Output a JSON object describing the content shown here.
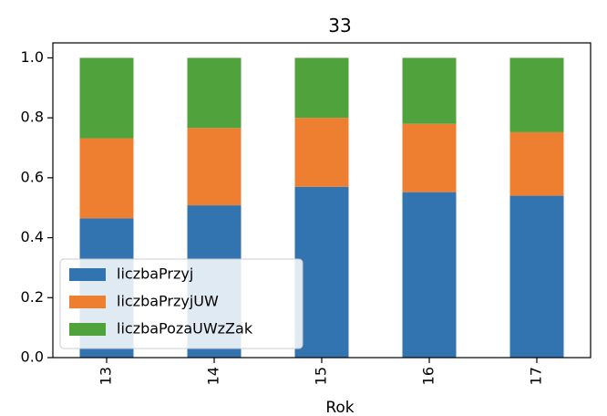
{
  "chart_data": {
    "type": "bar",
    "stacked": true,
    "title": "33",
    "xlabel": "Rok",
    "ylabel": "",
    "categories": [
      "13",
      "14",
      "15",
      "16",
      "17"
    ],
    "series": [
      {
        "name": "liczbaPrzyj",
        "color": "#3274b0",
        "values": [
          0.465,
          0.508,
          0.57,
          0.552,
          0.54
        ]
      },
      {
        "name": "liczbaPrzyjUW",
        "color": "#ee7f31",
        "values": [
          0.267,
          0.258,
          0.23,
          0.228,
          0.212
        ]
      },
      {
        "name": "liczbaPozaUWzZak",
        "color": "#4fa23c",
        "values": [
          0.268,
          0.234,
          0.2,
          0.22,
          0.248
        ]
      }
    ],
    "ylim": [
      0,
      1.05
    ],
    "yticks": [
      "0.0",
      "0.2",
      "0.4",
      "0.6",
      "0.8",
      "1.0"
    ],
    "grid": false,
    "legend_position": "lower-left"
  }
}
